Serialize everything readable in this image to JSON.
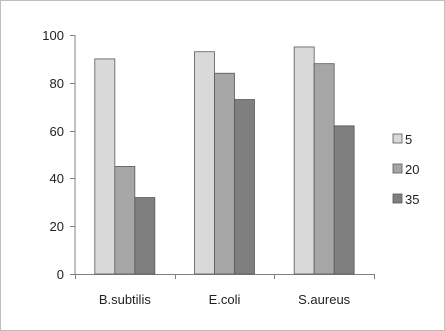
{
  "chart_data": {
    "type": "bar",
    "categories": [
      "B.subtilis",
      "E.coli",
      "S.aureus"
    ],
    "series": [
      {
        "name": "5",
        "values": [
          90,
          93,
          95
        ],
        "color": "#d9d9d9"
      },
      {
        "name": "20",
        "values": [
          45,
          84,
          88
        ],
        "color": "#a6a6a6"
      },
      {
        "name": "35",
        "values": [
          32,
          73,
          62
        ],
        "color": "#7f7f7f"
      }
    ],
    "ylim": [
      0,
      100
    ],
    "yticks": [
      0,
      20,
      40,
      60,
      80,
      100
    ],
    "grid": false,
    "legend_position": "right"
  }
}
